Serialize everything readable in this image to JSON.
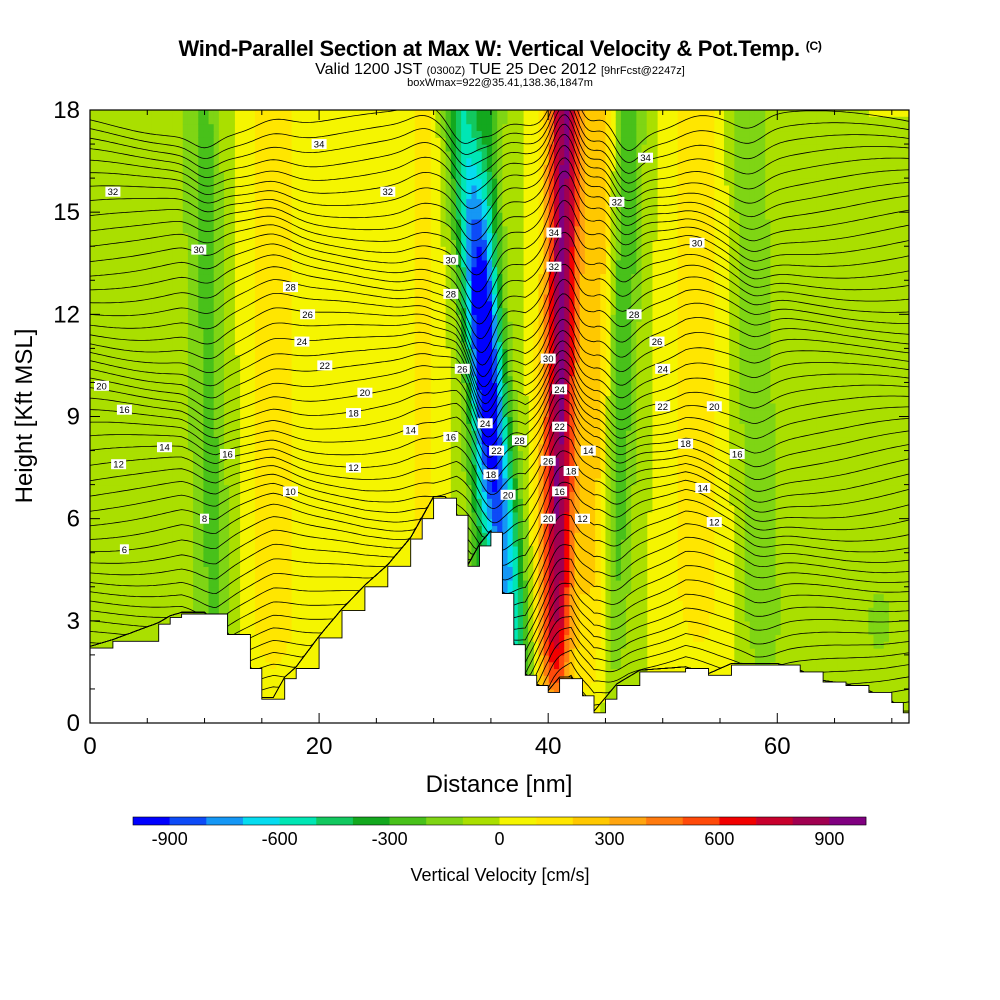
{
  "header": {
    "title": "Wind-Parallel Section at Max W: Vertical Velocity & Pot.Temp.",
    "title_mark": "(C)",
    "valid_prefix": "Valid 1200 JST",
    "valid_utc": "(0300Z)",
    "valid_date": "TUE 25 Dec 2012",
    "fcst": "[9hrFcst@2247z]",
    "box_info": "boxWmax=922@35.41,138.36,1847m"
  },
  "chart_data": {
    "type": "heatmap",
    "title": "Wind-Parallel Section at Max W: Vertical Velocity & Pot.Temp.",
    "xlabel": "Distance [nm]",
    "ylabel": "Height [Kft MSL]",
    "xlim": [
      0,
      71.5
    ],
    "ylim": [
      0,
      18
    ],
    "x_ticks": [
      0,
      20,
      40,
      60
    ],
    "y_ticks": [
      0,
      3,
      6,
      9,
      12,
      15,
      18
    ],
    "colorbar": {
      "label": "Vertical Velocity [cm/s]",
      "min": -1000,
      "max": 1000,
      "step": 100,
      "tick_values": [
        -900,
        -600,
        -300,
        0,
        300,
        600,
        900
      ],
      "tick_labels": [
        "-900",
        "-600",
        "-300",
        "0",
        "300",
        "600",
        "900"
      ],
      "colors": [
        "#0000ff",
        "#0d4bf7",
        "#1597f5",
        "#06dcf0",
        "#00e6b4",
        "#12c85f",
        "#13a81e",
        "#48c11a",
        "#7fd514",
        "#aadf00",
        "#f5f500",
        "#ffe600",
        "#ffc800",
        "#ffa510",
        "#ff7b0f",
        "#ff4a0a",
        "#f20000",
        "#c8002d",
        "#a00050",
        "#800080"
      ]
    },
    "terrain_height_kft": {
      "x": [
        0,
        2,
        6,
        7,
        8,
        10,
        12,
        14,
        15,
        16,
        17,
        18,
        20,
        22,
        24,
        26,
        28,
        29,
        30,
        31,
        32,
        33,
        34,
        35,
        36,
        37,
        38,
        39,
        40,
        41,
        42,
        43,
        44,
        45,
        46,
        48,
        52,
        54,
        56,
        58,
        60,
        62,
        64,
        66,
        68,
        70,
        71,
        71.5
      ],
      "height": [
        2.2,
        2.4,
        2.9,
        3.1,
        3.2,
        3.2,
        2.6,
        1.6,
        0.7,
        0.7,
        1.3,
        1.6,
        2.5,
        3.3,
        4,
        4.6,
        5.4,
        6,
        6.6,
        6.6,
        6.1,
        4.6,
        5.2,
        5.6,
        3.8,
        2.3,
        1.4,
        1.1,
        0.9,
        1.3,
        1.3,
        0.8,
        0.3,
        0.7,
        1.1,
        1.5,
        1.6,
        1.4,
        1.7,
        1.7,
        1.7,
        1.5,
        1.2,
        1.1,
        0.9,
        0.6,
        0.3,
        0.3
      ]
    },
    "updraft_core": {
      "x_center_at_top": 41.5,
      "x_center_at_bottom": 40.5,
      "max_cm_s": 922
    },
    "downdraft_core": {
      "x_center_at_top": 32.5,
      "x_center_at_bottom": 37.5,
      "min_cm_s": -900
    },
    "theta_contours": {
      "levels_K": [
        0,
        2,
        4,
        6,
        8,
        10,
        12,
        14,
        16,
        18,
        20,
        22,
        24,
        26,
        28,
        30,
        32,
        34
      ],
      "labels": [
        {
          "text": "34",
          "x": 20,
          "y": 17.0
        },
        {
          "text": "34",
          "x": 48.5,
          "y": 16.6
        },
        {
          "text": "32",
          "x": 2,
          "y": 15.6
        },
        {
          "text": "32",
          "x": 26,
          "y": 15.6
        },
        {
          "text": "32",
          "x": 46,
          "y": 15.3
        },
        {
          "text": "30",
          "x": 9.5,
          "y": 13.9
        },
        {
          "text": "30",
          "x": 31.5,
          "y": 13.6
        },
        {
          "text": "34",
          "x": 40.5,
          "y": 14.4
        },
        {
          "text": "32",
          "x": 40.5,
          "y": 13.4
        },
        {
          "text": "30",
          "x": 53,
          "y": 14.1
        },
        {
          "text": "28",
          "x": 17.5,
          "y": 12.8
        },
        {
          "text": "28",
          "x": 31.5,
          "y": 12.6
        },
        {
          "text": "26",
          "x": 19,
          "y": 12.0
        },
        {
          "text": "28",
          "x": 47.5,
          "y": 12.0
        },
        {
          "text": "24",
          "x": 18.5,
          "y": 11.2
        },
        {
          "text": "26",
          "x": 49.5,
          "y": 11.2
        },
        {
          "text": "22",
          "x": 20.5,
          "y": 10.5
        },
        {
          "text": "26",
          "x": 32.5,
          "y": 10.4
        },
        {
          "text": "30",
          "x": 40.0,
          "y": 10.7
        },
        {
          "text": "24",
          "x": 50,
          "y": 10.4
        },
        {
          "text": "20",
          "x": 1,
          "y": 9.9
        },
        {
          "text": "20",
          "x": 24,
          "y": 9.7
        },
        {
          "text": "24",
          "x": 41.0,
          "y": 9.8
        },
        {
          "text": "16",
          "x": 3,
          "y": 9.2
        },
        {
          "text": "18",
          "x": 23,
          "y": 9.1
        },
        {
          "text": "22",
          "x": 50,
          "y": 9.3
        },
        {
          "text": "20",
          "x": 54.5,
          "y": 9.3
        },
        {
          "text": "24",
          "x": 34.5,
          "y": 8.8
        },
        {
          "text": "22",
          "x": 41.0,
          "y": 8.7
        },
        {
          "text": "14",
          "x": 28,
          "y": 8.6
        },
        {
          "text": "16",
          "x": 31.5,
          "y": 8.4
        },
        {
          "text": "28",
          "x": 37.5,
          "y": 8.3
        },
        {
          "text": "14",
          "x": 6.5,
          "y": 8.1
        },
        {
          "text": "16",
          "x": 12,
          "y": 7.9
        },
        {
          "text": "22",
          "x": 35.5,
          "y": 8.0
        },
        {
          "text": "14",
          "x": 43.5,
          "y": 8.0
        },
        {
          "text": "18",
          "x": 52,
          "y": 8.2
        },
        {
          "text": "16",
          "x": 56.5,
          "y": 7.9
        },
        {
          "text": "12",
          "x": 2.5,
          "y": 7.6
        },
        {
          "text": "12",
          "x": 23,
          "y": 7.5
        },
        {
          "text": "26",
          "x": 40.0,
          "y": 7.7
        },
        {
          "text": "18",
          "x": 42.0,
          "y": 7.4
        },
        {
          "text": "18",
          "x": 35.0,
          "y": 7.3
        },
        {
          "text": "10",
          "x": 17.5,
          "y": 6.8
        },
        {
          "text": "20",
          "x": 36.5,
          "y": 6.7
        },
        {
          "text": "16",
          "x": 41.0,
          "y": 6.8
        },
        {
          "text": "14",
          "x": 53.5,
          "y": 6.9
        },
        {
          "text": "8",
          "x": 10,
          "y": 6.0
        },
        {
          "text": "20",
          "x": 40.0,
          "y": 6.0
        },
        {
          "text": "12",
          "x": 43.0,
          "y": 6.0
        },
        {
          "text": "12",
          "x": 54.5,
          "y": 5.9
        },
        {
          "text": "6",
          "x": 3,
          "y": 5.1
        }
      ]
    }
  }
}
